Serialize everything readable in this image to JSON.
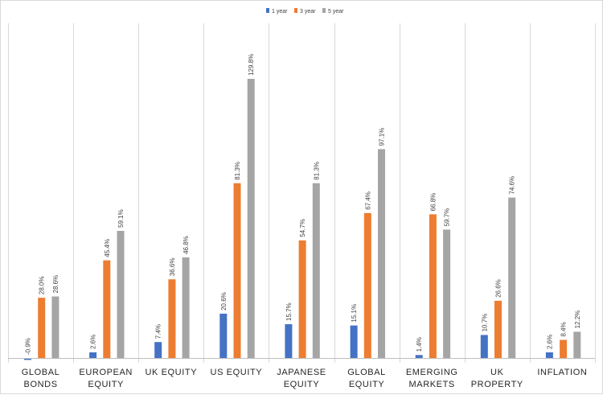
{
  "chart_data": {
    "type": "bar",
    "categories": [
      [
        "GLOBAL",
        "BONDS"
      ],
      [
        "EUROPEAN",
        "EQUITY"
      ],
      [
        "UK EQUITY"
      ],
      [
        "US EQUITY"
      ],
      [
        "JAPANESE",
        "EQUITY"
      ],
      [
        "GLOBAL",
        "EQUITY"
      ],
      [
        "EMERGING",
        "MARKETS"
      ],
      [
        "UK",
        "PROPERTY"
      ],
      [
        "INFLATION"
      ]
    ],
    "series": [
      {
        "name": "1 year",
        "color": "#4472c4",
        "values": [
          -0.9,
          2.6,
          7.4,
          20.6,
          15.7,
          15.1,
          1.4,
          10.7,
          2.6
        ],
        "labels": [
          "-0.9%",
          "2.6%",
          "7.4%",
          "20.6%",
          "15.7%",
          "15.1%",
          "1.4%",
          "10.7%",
          "2.6%"
        ]
      },
      {
        "name": "3 year",
        "color": "#ed7d31",
        "values": [
          28.0,
          45.4,
          36.6,
          81.3,
          54.7,
          67.4,
          66.8,
          26.6,
          8.4
        ],
        "labels": [
          "28.0%",
          "45.4%",
          "36.6%",
          "81.3%",
          "54.7%",
          "67.4%",
          "66.8%",
          "26.6%",
          "8.4%"
        ]
      },
      {
        "name": "5 year",
        "color": "#a5a5a5",
        "values": [
          28.6,
          59.1,
          46.8,
          129.8,
          81.3,
          97.1,
          59.7,
          74.6,
          12.2
        ],
        "labels": [
          "28.6%",
          "59.1%",
          "46.8%",
          "129.8%",
          "81.3%",
          "97.1%",
          "59.7%",
          "74.6%",
          "12.2%"
        ]
      }
    ],
    "ylim": [
      -1,
      130
    ],
    "grid": "vertical separators between categories",
    "legend_position": "top-center",
    "data_labels": "rotated vertical above bars",
    "axis_color": "#bfbfbf",
    "gridline_color": "#d9d9d9"
  }
}
